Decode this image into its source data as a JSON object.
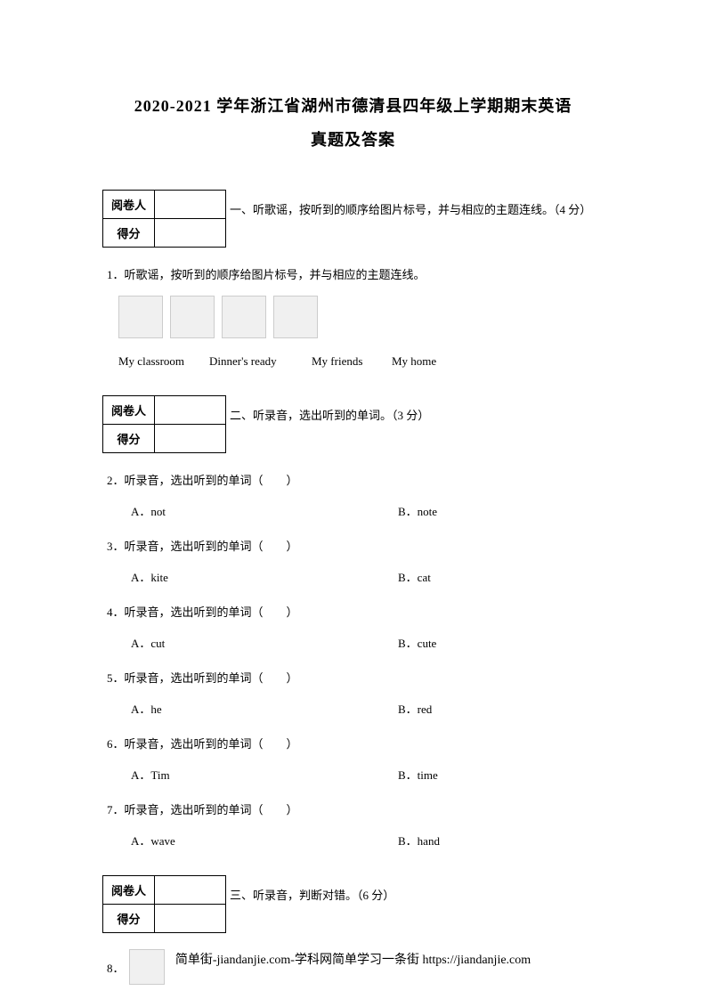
{
  "title_line1": "2020-2021 学年浙江省湖州市德清县四年级上学期期末英语",
  "title_line2": "真题及答案",
  "grader_labels": {
    "row1": "阅卷人",
    "row2": "得分"
  },
  "section1": {
    "title": "一、听歌谣，按听到的顺序给图片标号，并与相应的主题连线。（4 分）",
    "q1": "1．听歌谣，按听到的顺序给图片标号，并与相应的主题连线。",
    "labels": [
      "My classroom",
      "Dinner's ready",
      "My friends",
      "My home"
    ]
  },
  "section2": {
    "title": "二、听录音，选出听到的单词。（3 分）",
    "questions": [
      {
        "num": "2．",
        "text": "听录音，选出听到的单词（　　）",
        "optA": "A．not",
        "optB": "B．note"
      },
      {
        "num": "3．",
        "text": "听录音，选出听到的单词（　　）",
        "optA": "A．kite",
        "optB": "B．cat"
      },
      {
        "num": "4．",
        "text": "听录音，选出听到的单词（　　）",
        "optA": "A．cut",
        "optB": "B．cute"
      },
      {
        "num": "5．",
        "text": "听录音，选出听到的单词（　　）",
        "optA": "A．he",
        "optB": "B．red"
      },
      {
        "num": "6．",
        "text": "听录音，选出听到的单词（　　）",
        "optA": "A．Tim",
        "optB": "B．time"
      },
      {
        "num": "7．",
        "text": "听录音，选出听到的单词（　　）",
        "optA": "A．wave",
        "optB": "B．hand"
      }
    ]
  },
  "section3": {
    "title": "三、听录音，判断对错。（6 分）",
    "q8": "8．"
  },
  "footer": "简单街-jiandanjie.com-学科网简单学习一条街 https://jiandanjie.com"
}
